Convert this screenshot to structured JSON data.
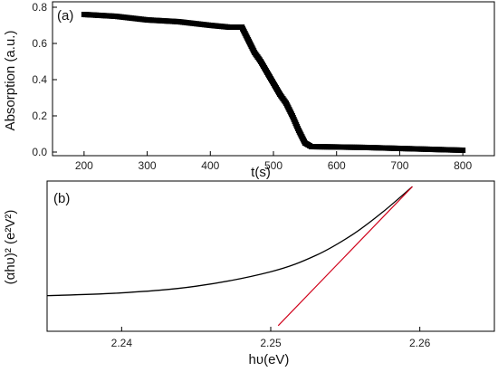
{
  "chart_data": [
    {
      "type": "scatter",
      "panel_label": "(a)",
      "xlabel": "t(s)",
      "ylabel": "Absorption (a.u.)",
      "xlim": [
        150,
        850
      ],
      "ylim": [
        -0.02,
        0.83
      ],
      "xticks": [
        "200",
        "300",
        "400",
        "500",
        "600",
        "700",
        "800"
      ],
      "yticks": [
        "0.0",
        "0.2",
        "0.4",
        "0.6",
        "0.8"
      ],
      "grid": false,
      "series": [
        {
          "color": "#000000",
          "x": [
            200,
            250,
            300,
            350,
            400,
            430,
            450,
            460,
            470,
            480,
            490,
            500,
            510,
            520,
            530,
            540,
            550,
            560,
            600,
            650,
            700,
            750,
            800
          ],
          "y": [
            0.76,
            0.75,
            0.73,
            0.72,
            0.7,
            0.69,
            0.69,
            0.62,
            0.55,
            0.5,
            0.44,
            0.38,
            0.32,
            0.27,
            0.2,
            0.12,
            0.05,
            0.03,
            0.028,
            0.025,
            0.02,
            0.015,
            0.01
          ]
        }
      ]
    },
    {
      "type": "line",
      "panel_label": "(b)",
      "xlabel": "hυ(eV)",
      "ylabel": "(αhυ)² (e²V²)",
      "xlim": [
        2.235,
        2.265
      ],
      "xticks": [
        "2.24",
        "2.25",
        "2.26"
      ],
      "grid": false,
      "series": [
        {
          "color": "#000000",
          "x": [
            2.235,
            2.24,
            2.245,
            2.25,
            2.253,
            2.2555,
            2.2575,
            2.2595
          ],
          "y": [
            0.07,
            0.095,
            0.155,
            0.285,
            0.43,
            0.62,
            0.82,
            1.05
          ]
        },
        {
          "color": "#d0021b",
          "x": [
            2.2505,
            2.2595
          ],
          "y": [
            -0.2,
            1.05
          ]
        }
      ]
    }
  ]
}
